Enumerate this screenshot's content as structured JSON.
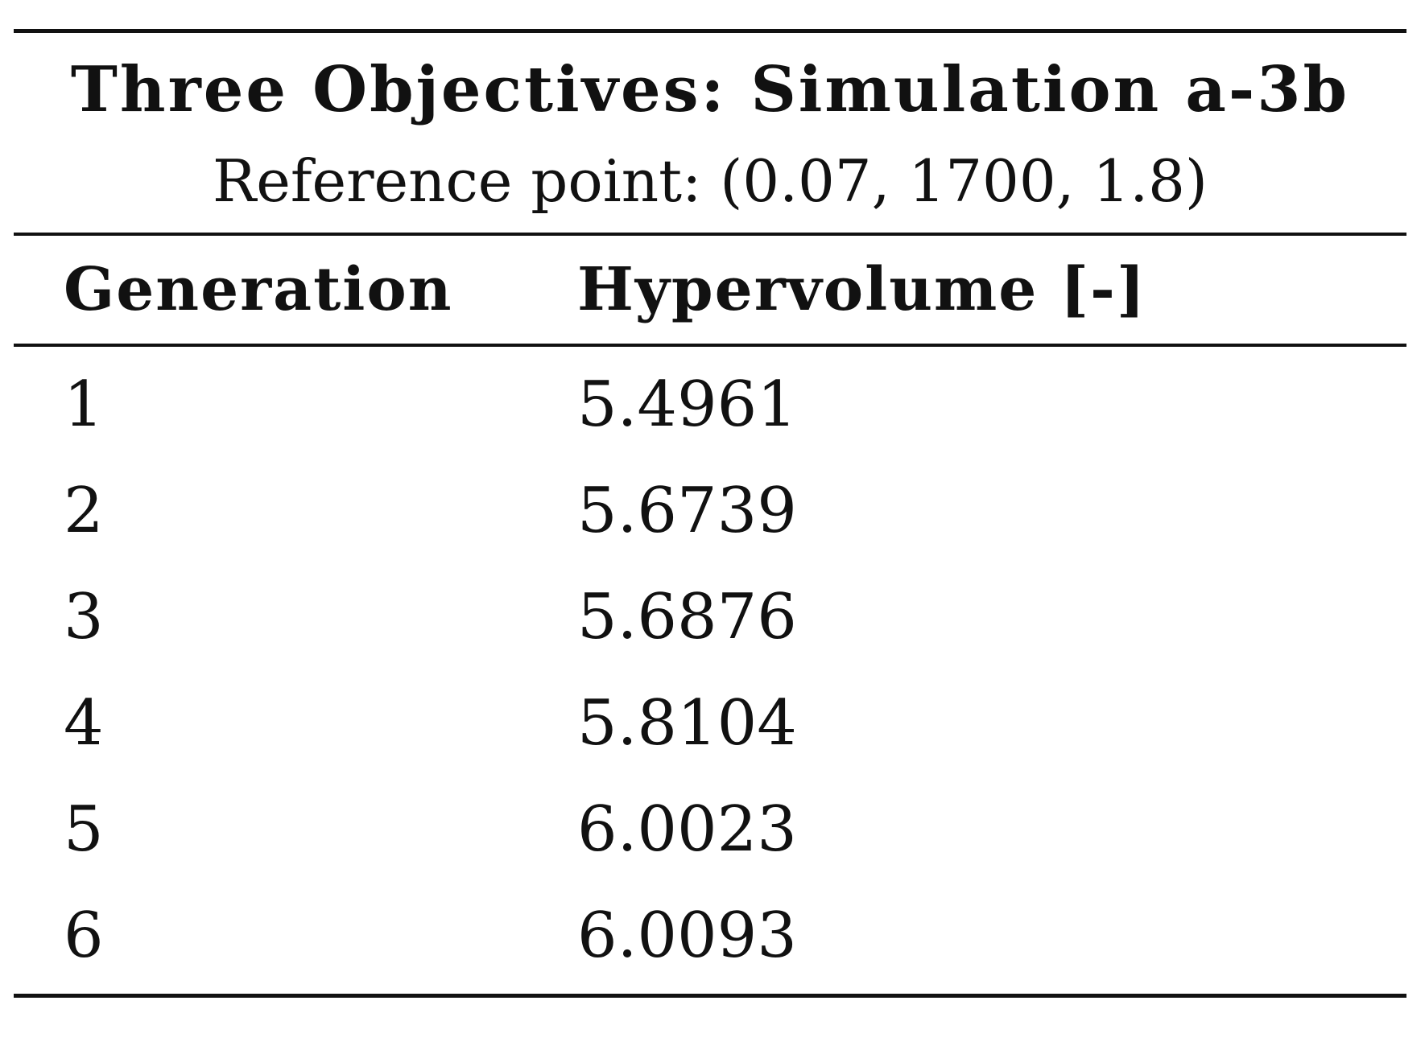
{
  "table": {
    "title": "Three Objectives: Simulation a-3b",
    "subtitle": "Reference point: (0.07, 1700, 1.8)",
    "headers": [
      "Generation",
      "Hypervolume [-]"
    ],
    "rows": [
      [
        "1",
        "5.4961"
      ],
      [
        "2",
        "5.6739"
      ],
      [
        "3",
        "5.6876"
      ],
      [
        "4",
        "5.8104"
      ],
      [
        "5",
        "6.0023"
      ],
      [
        "6",
        "6.0093"
      ]
    ]
  }
}
